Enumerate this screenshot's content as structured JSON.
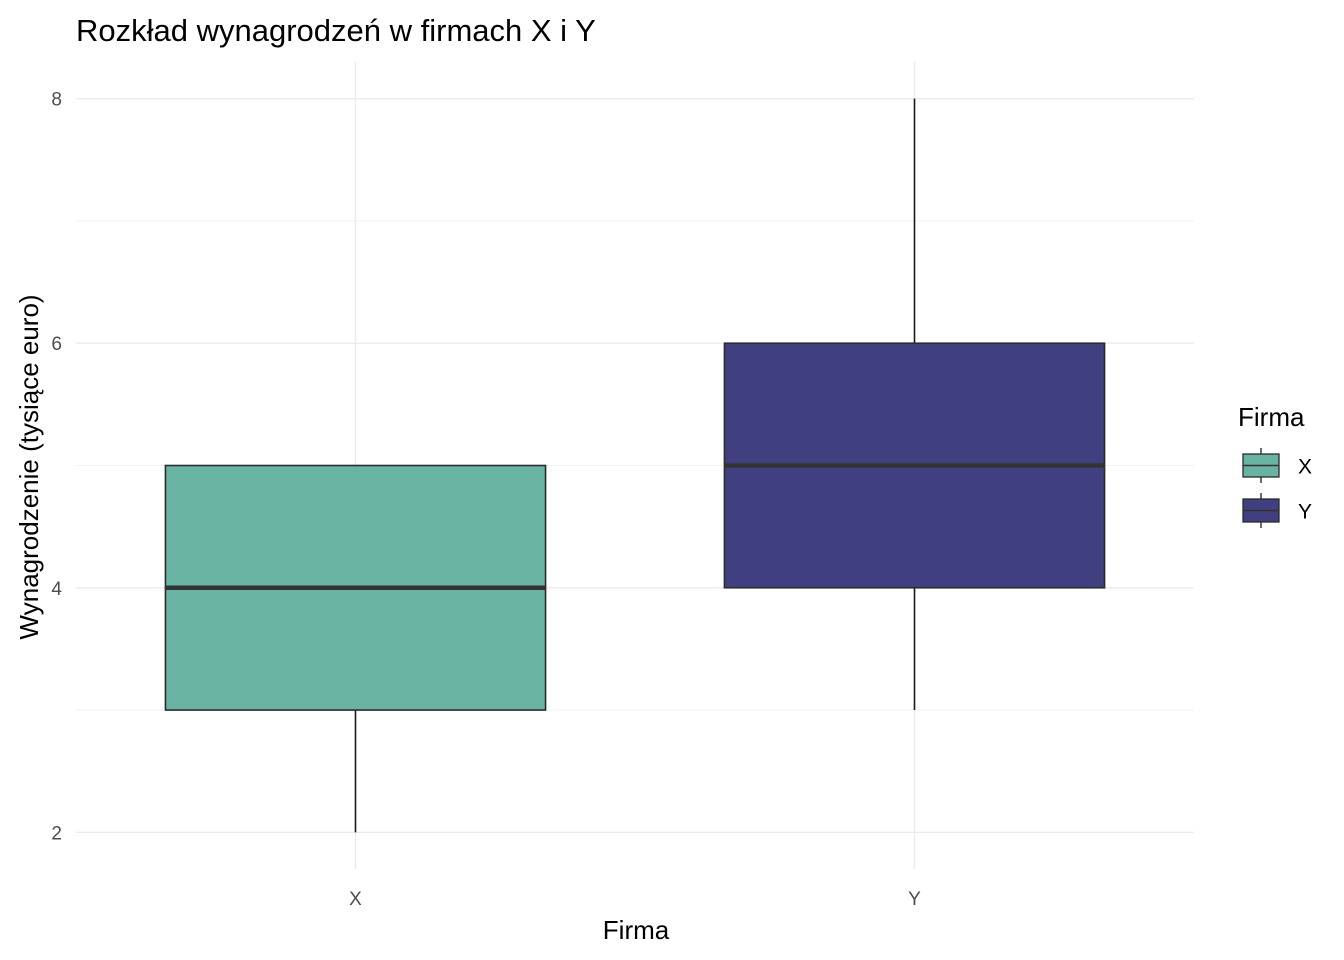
{
  "chart_data": {
    "type": "boxplot",
    "title": "Rozkład wynagrodzeń w firmach X i Y",
    "xlabel": "Firma",
    "ylabel": "Wynagrodzenie (tysiące euro)",
    "ylim": [
      1.7,
      8.3
    ],
    "yticks": [
      2,
      4,
      6,
      8
    ],
    "y_minor_ticks": [
      3,
      5,
      7
    ],
    "grid": true,
    "categories": [
      "X",
      "Y"
    ],
    "series": [
      {
        "name": "X",
        "color": "#69b3a2",
        "min": 2,
        "q1": 3,
        "median": 4,
        "q3": 5,
        "max": 5
      },
      {
        "name": "Y",
        "color": "#404080",
        "min": 3,
        "q1": 4,
        "median": 5,
        "q3": 6,
        "max": 8
      }
    ],
    "legend": {
      "title": "Firma",
      "position": "right",
      "entries": [
        "X",
        "Y"
      ]
    }
  }
}
